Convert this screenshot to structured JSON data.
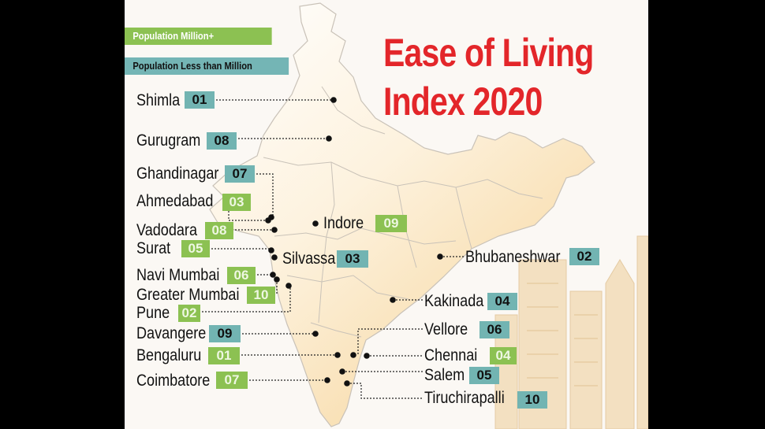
{
  "header": {
    "title_line1": "Ease of Living",
    "title_line2": "Index 2020"
  },
  "legend": {
    "million_plus": {
      "label": "Population Million+",
      "color": "#8cc152"
    },
    "less_than_million": {
      "label": "Population Less than Million",
      "color": "#72b4b2"
    }
  },
  "cities": [
    {
      "id": "shimla",
      "name": "Shimla",
      "rank": "01",
      "category": "less_than_million"
    },
    {
      "id": "gurugram",
      "name": "Gurugram",
      "rank": "08",
      "category": "less_than_million"
    },
    {
      "id": "ghandinagar",
      "name": "Ghandinagar",
      "rank": "07",
      "category": "less_than_million"
    },
    {
      "id": "ahmedabad",
      "name": "Ahmedabad",
      "rank": "03",
      "category": "million_plus"
    },
    {
      "id": "vadodara",
      "name": "Vadodara",
      "rank": "08",
      "category": "million_plus"
    },
    {
      "id": "surat",
      "name": "Surat",
      "rank": "05",
      "category": "million_plus"
    },
    {
      "id": "navi-mumbai",
      "name": "Navi Mumbai",
      "rank": "06",
      "category": "million_plus"
    },
    {
      "id": "greater-mumbai",
      "name": "Greater Mumbai",
      "rank": "10",
      "category": "million_plus"
    },
    {
      "id": "pune",
      "name": "Pune",
      "rank": "02",
      "category": "million_plus"
    },
    {
      "id": "davangere",
      "name": "Davangere",
      "rank": "09",
      "category": "less_than_million"
    },
    {
      "id": "bengaluru",
      "name": "Bengaluru",
      "rank": "01",
      "category": "million_plus"
    },
    {
      "id": "coimbatore",
      "name": "Coimbatore",
      "rank": "07",
      "category": "million_plus"
    },
    {
      "id": "indore",
      "name": "Indore",
      "rank": "09",
      "category": "million_plus"
    },
    {
      "id": "silvassa",
      "name": "Silvassa",
      "rank": "03",
      "category": "less_than_million"
    },
    {
      "id": "bhubaneshwar",
      "name": "Bhubaneshwar",
      "rank": "02",
      "category": "less_than_million"
    },
    {
      "id": "kakinada",
      "name": "Kakinada",
      "rank": "04",
      "category": "less_than_million"
    },
    {
      "id": "vellore",
      "name": "Vellore",
      "rank": "06",
      "category": "less_than_million"
    },
    {
      "id": "chennai",
      "name": "Chennai",
      "rank": "04",
      "category": "million_plus"
    },
    {
      "id": "salem",
      "name": "Salem",
      "rank": "05",
      "category": "less_than_million"
    },
    {
      "id": "tiruchirapalli",
      "name": "Tiruchirapalli",
      "rank": "10",
      "category": "less_than_million"
    }
  ]
}
